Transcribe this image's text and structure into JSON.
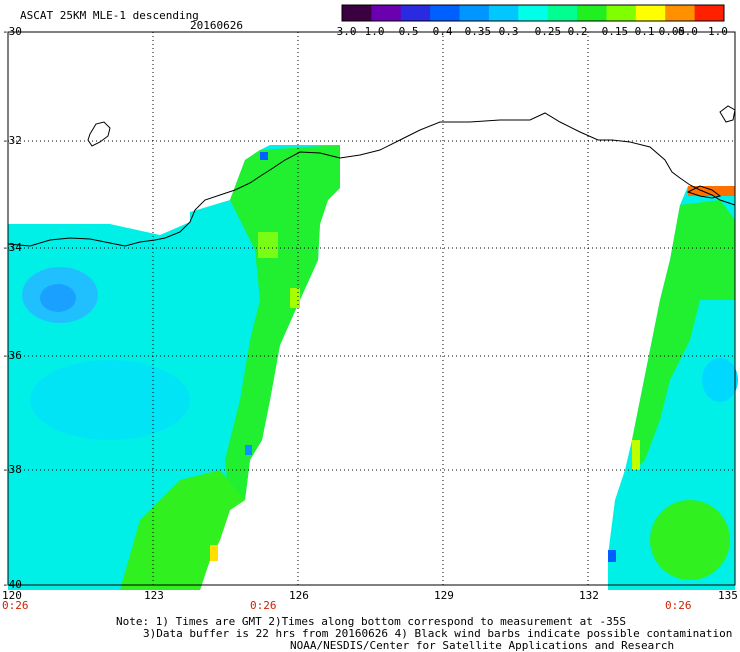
{
  "header": {
    "product_title": "ASCAT 25KM MLE-1 descending",
    "date": "20160626"
  },
  "colorbar": {
    "labels": [
      "-3.0",
      "-1.0",
      "-0.5",
      "-0.4",
      "-0.35",
      "-0.3",
      "-0.25",
      "-0.2",
      "-0.15",
      "-0.1",
      "-0.05",
      "0.0",
      "1.0"
    ],
    "colors": [
      "#3a0040",
      "#6a00b0",
      "#2a2ae0",
      "#0060ff",
      "#0096ff",
      "#00c8ff",
      "#00ffe8",
      "#00ff90",
      "#20f020",
      "#80ff00",
      "#ffff00",
      "#ff9000",
      "#ff2000"
    ]
  },
  "axes": {
    "lon_labels": [
      "120",
      "123",
      "126",
      "129",
      "132",
      "135"
    ],
    "lat_labels": [
      "-30",
      "-32",
      "-34",
      "-36",
      "-38",
      "-40"
    ]
  },
  "time_markers": [
    "0:26",
    "0:26",
    "0:26"
  ],
  "notes": {
    "line1": "Note: 1) Times are GMT 2)Times along bottom correspond to measurement at -35S",
    "line2": "3)Data buffer is 22 hrs from 20160626 4) Black wind barbs indicate possible contamination",
    "line3": "NOAA/NESDIS/Center for Satellite Applications and Research"
  },
  "map_colors": {
    "cyan": "#00f0e8",
    "cyan_deep": "#00d0ff",
    "blue": "#20a8ff",
    "green": "#10f020",
    "green_light": "#60ff30",
    "yellow_green": "#b0ff00",
    "orange": "#ff7000",
    "coast": "#000000"
  }
}
